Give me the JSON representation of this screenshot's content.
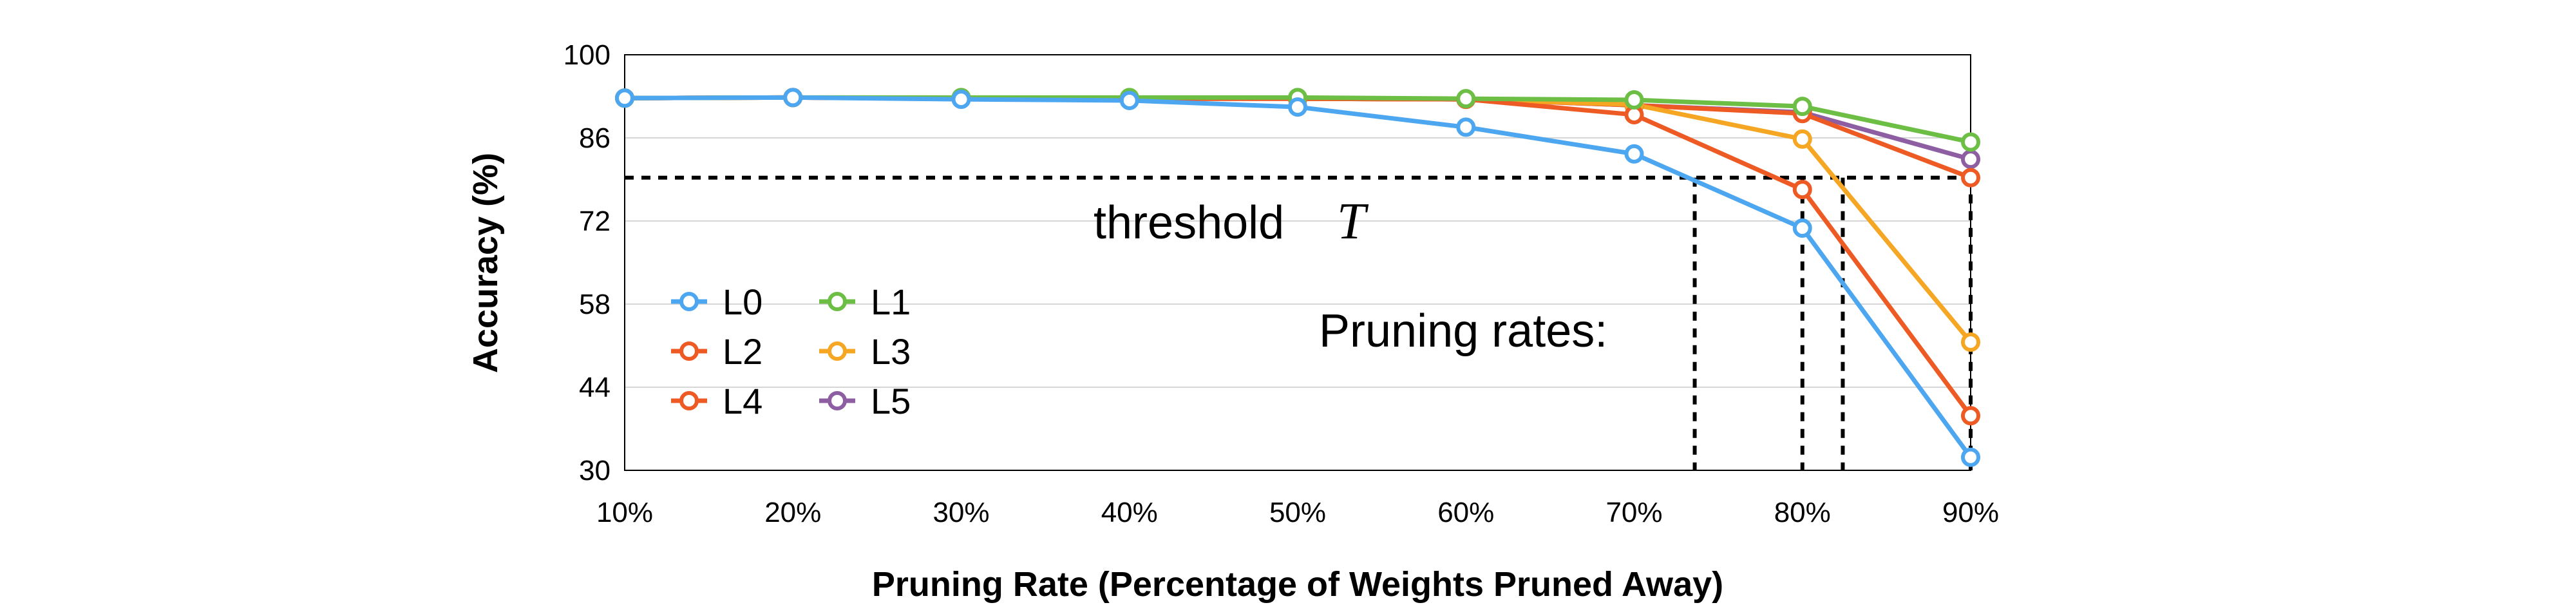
{
  "chart_data": {
    "type": "line",
    "xlabel": "Pruning Rate (Percentage of Weights Pruned Away)",
    "ylabel": "Accuracy (%)",
    "categories": [
      "10%",
      "20%",
      "30%",
      "40%",
      "50%",
      "60%",
      "70%",
      "80%",
      "90%"
    ],
    "ylim": [
      30,
      100
    ],
    "yticks": [
      "30",
      "44",
      "58",
      "72",
      "86",
      "100"
    ],
    "grid": "horizontal",
    "legend_position": "left",
    "series": [
      {
        "name": "L0",
        "color": "#4da6f0",
        "values": [
          92.7,
          92.8,
          92.5,
          92.3,
          91.2,
          87.8,
          83.3,
          70.8,
          32.2
        ]
      },
      {
        "name": "L1",
        "color": "#6dbe45",
        "values": [
          92.7,
          92.8,
          92.8,
          92.8,
          92.8,
          92.6,
          92.4,
          91.3,
          85.3
        ]
      },
      {
        "name": "L2",
        "color": "#ee5a24",
        "values": [
          92.7,
          92.8,
          92.6,
          92.6,
          92.6,
          92.5,
          89.9,
          77.3,
          39.2
        ]
      },
      {
        "name": "L3",
        "color": "#f5a623",
        "values": [
          92.7,
          92.8,
          92.6,
          92.6,
          92.6,
          92.5,
          91.6,
          85.8,
          51.6
        ]
      },
      {
        "name": "L4",
        "color": "#ee5a24",
        "values": [
          92.7,
          92.8,
          92.6,
          92.6,
          92.6,
          92.5,
          91.5,
          90.1,
          79.3
        ]
      },
      {
        "name": "L5",
        "color": "#8e5ea2",
        "values": [
          92.7,
          92.8,
          92.6,
          92.6,
          92.6,
          92.5,
          91.5,
          90.3,
          82.4
        ]
      }
    ],
    "threshold": {
      "value": 79.3,
      "label": "threshold",
      "symbol": "T"
    },
    "pruning_rates_label": "Pruning rates:",
    "pruning_rate_markers": [
      73.6,
      80.0,
      82.4,
      90.0
    ]
  }
}
